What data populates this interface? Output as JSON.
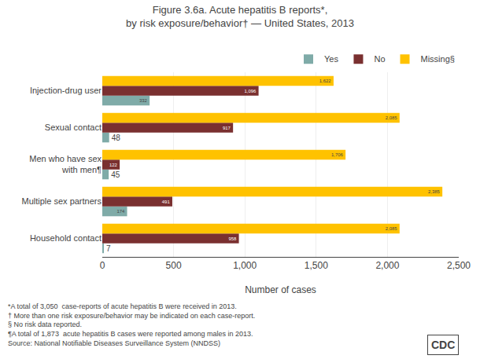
{
  "chart_data": {
    "type": "bar",
    "orientation": "horizontal",
    "title": "Figure 3.6a. Acute hepatitis B reports*,\nby risk exposure/behavior† — United States, 2013",
    "xlabel": "Number of cases",
    "categories": [
      "Household contact",
      "Multiple sex partners",
      "Men who have sex\nwith men¶",
      "Sexual contact",
      "Injection-drug user"
    ],
    "series": [
      {
        "name": "Yes",
        "color": "#7faba8",
        "values": [
          7,
          174,
          45,
          48,
          332
        ],
        "value_labels": [
          "7",
          "174",
          "45",
          "48",
          "332"
        ]
      },
      {
        "name": "No",
        "color": "#7a3030",
        "values": [
          958,
          491,
          122,
          917,
          1096
        ],
        "value_labels": [
          "958",
          "491",
          "122",
          "917",
          "1,096"
        ]
      },
      {
        "name": "Missing§",
        "color": "#ffc200",
        "values": [
          2085,
          2385,
          1706,
          2085,
          1622
        ],
        "value_labels": [
          "2,085",
          "2,385",
          "1,706",
          "2,085",
          "1,622"
        ]
      }
    ],
    "xlim": [
      0,
      2500
    ],
    "xticks": [
      0,
      500,
      {
        "value": 1000,
        "label": "1,000"
      },
      {
        "value": 1500,
        "label": "1,500"
      },
      {
        "value": 2000,
        "label": "2,000"
      },
      {
        "value": 2500,
        "label": "2,500"
      }
    ],
    "grid": true,
    "legend": "upper right",
    "data_labels": true,
    "annotations": [
      "*A total of 3,050  case-reports of acute hepatitis B were received in 2013.",
      "† More than one risk exposure/behavior may be indicated on each case-report.",
      "§ No risk data reported.",
      "¶A total of 1,873  acute hepatitis B cases were reported among males in 2013.",
      "Source: National Notifiable Diseases Surveillance System (NNDSS)",
      "CDC"
    ]
  }
}
